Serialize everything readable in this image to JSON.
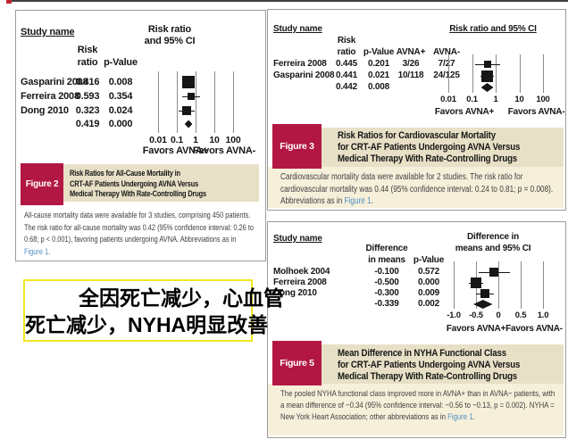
{
  "annotation_box": {
    "line1": "全因死亡减少，心血管",
    "line2": "死亡减少，NYHA明显改善",
    "border_color": "#f0e821",
    "text_color": "#000000"
  },
  "colors": {
    "figure_chip_bg": "#b21743",
    "figure_chip_text": "#ffffff",
    "title_strip_bg": "#e8e0c6",
    "caption_bg_cream": "#f6efda",
    "title_text": "#1d6fb8",
    "caption_text": "#3e3e3e",
    "link_text": "#4d8fc4",
    "panel_border": "#9b9b9b",
    "gridline": "#8c8c8c",
    "marker": "#161616"
  },
  "chart_data": [
    {
      "type": "forest",
      "figure_label": "Figure 2",
      "scale": "log",
      "axis_ticks": [
        "0.01",
        "0.1",
        "1",
        "10",
        "100"
      ],
      "axis_tick_values": [
        0.01,
        0.1,
        1,
        10,
        100
      ],
      "study_header": "Study name",
      "value_header_lines": [
        "Risk",
        "ratio"
      ],
      "p_header": "p-Value",
      "extra_headers": [],
      "right_header_lines": [
        "Risk ratio",
        "and 95% CI"
      ],
      "right_header_underline": false,
      "favors_left": "Favors AVNA+",
      "favors_right": "Favors AVNA-",
      "rows": [
        {
          "study": "Gasparini 2008",
          "value_text": "0.416",
          "p_text": "0.008",
          "extra": [],
          "value": 0.416,
          "ci_low": 0.24,
          "ci_high": 0.73,
          "weight": "large"
        },
        {
          "study": "Ferreira 2008",
          "value_text": "0.593",
          "p_text": "0.354",
          "extra": [],
          "value": 0.593,
          "ci_low": 0.2,
          "ci_high": 1.75,
          "weight": "small"
        },
        {
          "study": "Dong 2010",
          "value_text": "0.323",
          "p_text": "0.024",
          "extra": [],
          "value": 0.323,
          "ci_low": 0.12,
          "ci_high": 0.87,
          "weight": "medium"
        }
      ],
      "summary": {
        "value_text": "0.419",
        "p_text": "0.000",
        "value": 0.419,
        "ci_low": 0.26,
        "ci_high": 0.68
      },
      "title_lines": [
        "Risk Ratios for All-Cause Mortality in",
        "CRT-AF Patients Undergoing AVNA Versus",
        "Medical Therapy With Rate-Controlling Drugs"
      ],
      "caption_before": "All-cause mortality data were available for 3 studies, comprising 450 patients. The risk ratio for all-cause mortality was 0.42 (95% confidence interval: 0.26 to 0.68; p < 0.001), favoring patients undergoing AVNA. Abbreviations as in ",
      "caption_link": "Figure 1",
      "caption_after": "."
    },
    {
      "type": "forest",
      "figure_label": "Figure 3",
      "scale": "log",
      "axis_ticks": [
        "0.01",
        "0.1",
        "1",
        "10",
        "100"
      ],
      "axis_tick_values": [
        0.01,
        0.1,
        1,
        10,
        100
      ],
      "study_header": "Study name",
      "value_header_lines": [
        "Risk",
        "ratio"
      ],
      "p_header": "p-Value",
      "extra_headers": [
        "AVNA+",
        "AVNA-"
      ],
      "right_header_lines": [
        "Risk ratio and 95% CI"
      ],
      "right_header_underline": true,
      "favors_left": "Favors AVNA+",
      "favors_right": "Favors AVNA-",
      "rows": [
        {
          "study": "Ferreira 2008",
          "value_text": "0.445",
          "p_text": "0.201",
          "extra": [
            "3/26",
            "7/27"
          ],
          "value": 0.445,
          "ci_low": 0.13,
          "ci_high": 1.55,
          "weight": "small"
        },
        {
          "study": "Gasparini 2008",
          "value_text": "0.441",
          "p_text": "0.021",
          "extra": [
            "10/118",
            "24/125"
          ],
          "value": 0.441,
          "ci_low": 0.23,
          "ci_high": 0.86,
          "weight": "large"
        }
      ],
      "summary": {
        "value_text": "0.442",
        "p_text": "0.008",
        "value": 0.442,
        "ci_low": 0.24,
        "ci_high": 0.81
      },
      "title_lines": [
        "Risk Ratios for Cardiovascular Mortality",
        "for CRT-AF Patients Undergoing AVNA Versus",
        "Medical Therapy With Rate-Controlling Drugs"
      ],
      "caption_before": "Cardiovascular mortality data were available for 2 studies. The risk ratio for cardiovascular mortality was 0.44 (95% confidence interval: 0.24 to 0.81; p = 0.008). Abbreviations as in ",
      "caption_link": "Figure 1",
      "caption_after": "."
    },
    {
      "type": "forest",
      "figure_label": "Figure 5",
      "scale": "linear",
      "axis_ticks": [
        "-1.0",
        "-0.5",
        "0",
        "0.5",
        "1.0"
      ],
      "axis_tick_values": [
        -1.0,
        -0.5,
        0,
        0.5,
        1.0
      ],
      "study_header": "Study name",
      "value_header_lines": [
        "Difference",
        "in means"
      ],
      "p_header": "p-Value",
      "extra_headers": [],
      "right_header_lines": [
        "Difference in",
        "means and 95% CI"
      ],
      "right_header_underline": false,
      "favors_left": "Favors AVNA+",
      "favors_right": "Favors AVNA-",
      "rows": [
        {
          "study": "Molhoek 2004",
          "value_text": "-0.100",
          "p_text": "0.572",
          "extra": [],
          "value": -0.1,
          "ci_low": -0.45,
          "ci_high": 0.25,
          "weight": "medium"
        },
        {
          "study": "Ferreira 2008",
          "value_text": "-0.500",
          "p_text": "0.000",
          "extra": [],
          "value": -0.5,
          "ci_low": -0.66,
          "ci_high": -0.34,
          "weight": "large"
        },
        {
          "study": "Dong 2010",
          "value_text": "-0.300",
          "p_text": "0.009",
          "extra": [],
          "value": -0.3,
          "ci_low": -0.5,
          "ci_high": -0.1,
          "weight": "medium"
        }
      ],
      "summary": {
        "value_text": "-0.339",
        "p_text": "0.002",
        "value": -0.339,
        "ci_low": -0.56,
        "ci_high": -0.13
      },
      "title_lines": [
        "Mean Difference in NYHA Functional Class",
        "for CRT-AF Patients Undergoing AVNA Versus",
        "Medical Therapy With Rate-Controlling Drugs"
      ],
      "caption_before": "The pooled NYHA functional class improved more in AVNA+ than in AVNA− patients, with a mean difference of −0.34 (95% confidence interval: −0.56 to −0.13, p = 0.002). NYHA = New York Heart Association; other abbreviations as in ",
      "caption_link": "Figure 1",
      "caption_after": "."
    }
  ]
}
